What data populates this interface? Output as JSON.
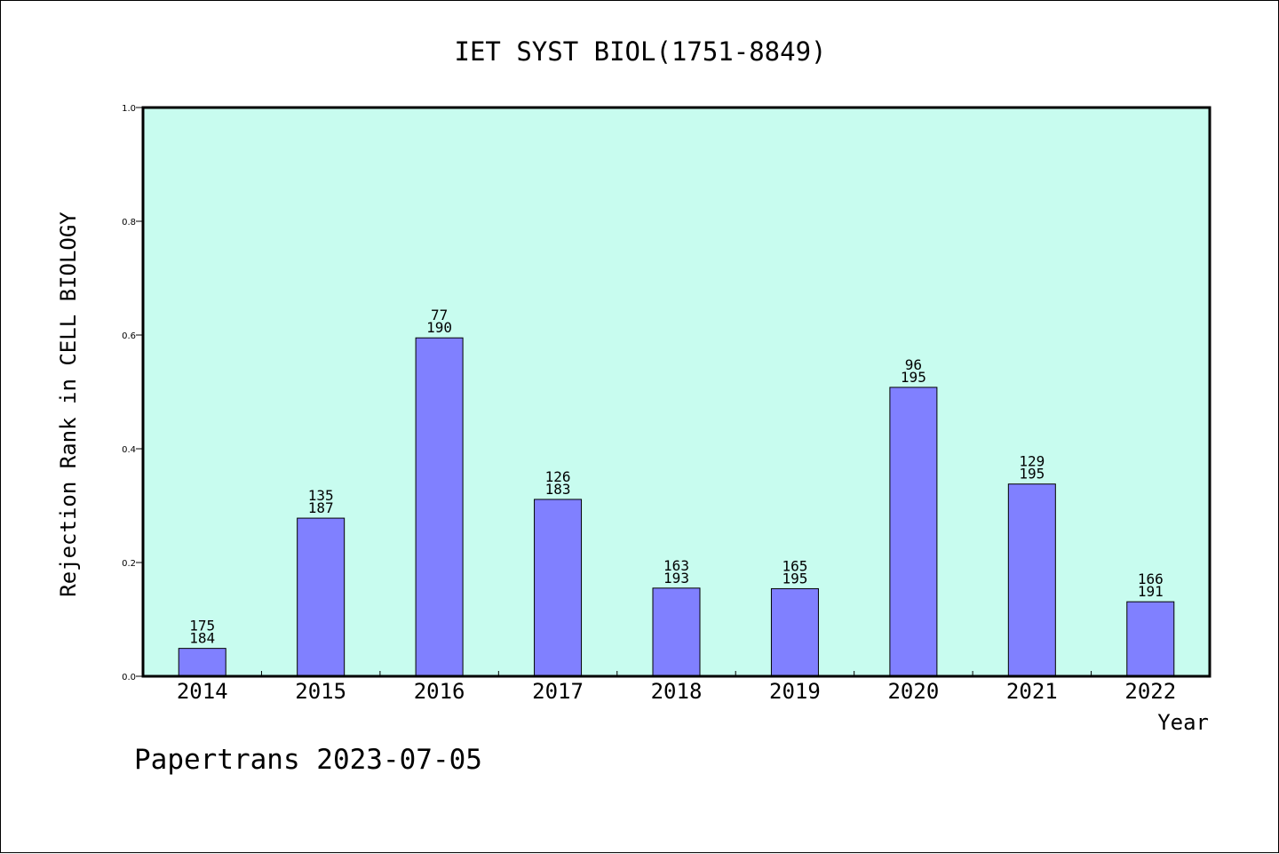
{
  "chart_data": {
    "type": "bar",
    "title": "IET SYST BIOL(1751-8849)",
    "xlabel": "Year",
    "ylabel": "Rejection Rank in CELL BIOLOGY",
    "ylim": [
      0,
      1.0
    ],
    "yticks": [
      "0.0",
      "0.2",
      "0.4",
      "0.6",
      "0.8",
      "1.0"
    ],
    "categories": [
      "2014",
      "2015",
      "2016",
      "2017",
      "2018",
      "2019",
      "2020",
      "2021",
      "2022"
    ],
    "values": [
      0.049,
      0.278,
      0.595,
      0.311,
      0.155,
      0.154,
      0.508,
      0.338,
      0.131
    ],
    "rank_labels": [
      "175",
      "135",
      "77",
      "126",
      "163",
      "165",
      "96",
      "129",
      "166"
    ],
    "total_labels": [
      "184",
      "187",
      "190",
      "183",
      "193",
      "195",
      "195",
      "195",
      "191"
    ],
    "grid": false,
    "colors": {
      "plot_background": "#c8fcef",
      "bar_fill": "#8080ff",
      "bar_stroke": "#000000"
    }
  },
  "footer": "Papertrans 2023-07-05"
}
